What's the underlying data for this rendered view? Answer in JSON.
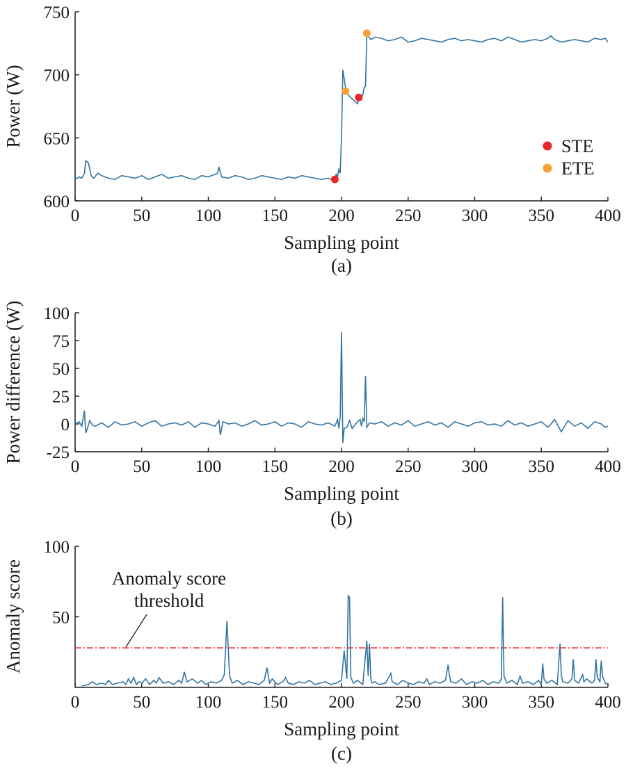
{
  "colors": {
    "series": "#3274a1",
    "ste": "#e8262a",
    "ete": "#f5a23a",
    "threshold": "#e8262a",
    "axis": "#1a1a1a"
  },
  "chart_data": [
    {
      "type": "line",
      "panel_label": "(a)",
      "xlabel": "Sampling point",
      "ylabel": "Power (W)",
      "xlim": [
        0,
        400
      ],
      "ylim": [
        600,
        750
      ],
      "x_ticks": [
        "0",
        "50",
        "100",
        "150",
        "200",
        "250",
        "300",
        "350",
        "400"
      ],
      "y_ticks": [
        "600",
        "650",
        "700",
        "750"
      ],
      "grid": false,
      "legend_position": "right",
      "legend": [
        {
          "label": "STE",
          "color": "#e8262a"
        },
        {
          "label": "ETE",
          "color": "#f5a23a"
        }
      ],
      "series": [
        {
          "name": "Power",
          "color": "#3274a1",
          "x": [
            0,
            3,
            5,
            7,
            8,
            10,
            12,
            14,
            17,
            20,
            25,
            30,
            35,
            40,
            45,
            50,
            55,
            60,
            65,
            70,
            75,
            80,
            85,
            90,
            95,
            100,
            105,
            107,
            108,
            110,
            115,
            120,
            125,
            130,
            135,
            140,
            145,
            150,
            155,
            160,
            165,
            170,
            175,
            180,
            185,
            190,
            193,
            195,
            196,
            197,
            198,
            199,
            200,
            201,
            203,
            205,
            207,
            209,
            211,
            212,
            213,
            214,
            215,
            216,
            217,
            218,
            219,
            220,
            222,
            225,
            230,
            235,
            240,
            245,
            250,
            255,
            260,
            265,
            270,
            275,
            280,
            285,
            290,
            295,
            300,
            305,
            310,
            315,
            320,
            325,
            330,
            335,
            340,
            345,
            350,
            355,
            357,
            360,
            365,
            370,
            375,
            380,
            385,
            390,
            395,
            398,
            400
          ],
          "y": [
            617,
            619,
            618,
            622,
            632,
            630,
            620,
            618,
            622,
            620,
            618,
            617,
            620,
            619,
            618,
            620,
            617,
            619,
            621,
            618,
            619,
            620,
            618,
            617,
            620,
            619,
            621,
            622,
            627,
            619,
            618,
            620,
            619,
            617,
            618,
            620,
            619,
            618,
            617,
            619,
            618,
            620,
            619,
            618,
            617,
            618,
            617,
            617,
            621,
            619,
            625,
            622,
            650,
            704,
            690,
            684,
            682,
            680,
            678,
            677,
            681,
            682,
            683,
            684,
            690,
            691,
            732,
            731,
            728,
            730,
            729,
            727,
            728,
            730,
            726,
            727,
            729,
            728,
            727,
            726,
            728,
            729,
            727,
            728,
            727,
            726,
            728,
            729,
            727,
            730,
            728,
            726,
            727,
            728,
            727,
            729,
            731,
            728,
            726,
            727,
            728,
            727,
            726,
            729,
            728,
            729,
            726
          ]
        },
        {
          "name": "STE",
          "type": "scatter",
          "color": "#e8262a",
          "x": [
            195,
            213
          ],
          "y": [
            617,
            682
          ]
        },
        {
          "name": "ETE",
          "type": "scatter",
          "color": "#f5a23a",
          "x": [
            203,
            219
          ],
          "y": [
            687,
            733
          ]
        }
      ]
    },
    {
      "type": "line",
      "panel_label": "(b)",
      "xlabel": "Sampling point",
      "ylabel": "Power difference (W)",
      "xlim": [
        0,
        400
      ],
      "ylim": [
        -25,
        100
      ],
      "x_ticks": [
        "0",
        "50",
        "100",
        "150",
        "200",
        "250",
        "300",
        "350",
        "400"
      ],
      "y_ticks": [
        "-25",
        "0",
        "25",
        "50",
        "75",
        "100"
      ],
      "grid": false,
      "series": [
        {
          "name": "Power difference",
          "color": "#3274a1",
          "x": [
            0,
            3,
            5,
            7,
            8,
            9,
            11,
            13,
            15,
            20,
            25,
            30,
            35,
            40,
            45,
            50,
            55,
            60,
            65,
            70,
            75,
            80,
            85,
            90,
            95,
            100,
            105,
            108,
            109,
            111,
            115,
            120,
            125,
            130,
            135,
            140,
            145,
            150,
            155,
            160,
            165,
            170,
            175,
            180,
            185,
            190,
            195,
            197,
            198,
            199,
            200,
            201,
            202,
            204,
            206,
            208,
            210,
            212,
            214,
            215,
            216,
            217,
            218,
            219,
            221,
            225,
            230,
            235,
            240,
            245,
            250,
            255,
            260,
            265,
            270,
            275,
            280,
            285,
            290,
            295,
            300,
            305,
            310,
            315,
            320,
            325,
            330,
            335,
            340,
            345,
            350,
            355,
            358,
            360,
            365,
            370,
            375,
            380,
            385,
            390,
            395,
            398,
            400
          ],
          "y": [
            0,
            2,
            -2,
            12,
            -8,
            -5,
            3,
            -1,
            -2,
            1,
            -3,
            2,
            -1,
            0,
            2,
            -2,
            1,
            3,
            -2,
            0,
            1,
            -1,
            2,
            -3,
            1,
            0,
            -2,
            3,
            -10,
            2,
            0,
            1,
            -2,
            0,
            3,
            -1,
            0,
            2,
            -2,
            1,
            0,
            -3,
            2,
            0,
            -1,
            1,
            -2,
            4,
            -4,
            6,
            83,
            -17,
            -4,
            -3,
            3,
            -4,
            -1,
            2,
            4,
            -2,
            5,
            2,
            43,
            -3,
            1,
            0,
            2,
            -2,
            1,
            -1,
            3,
            -2,
            0,
            2,
            -1,
            1,
            -3,
            2,
            0,
            -2,
            1,
            2,
            -1,
            0,
            -2,
            3,
            -1,
            1,
            -2,
            0,
            2,
            -3,
            1,
            4,
            -7,
            3,
            -2,
            1,
            -4,
            2,
            0,
            -3,
            -2
          ]
        }
      ]
    },
    {
      "type": "line",
      "panel_label": "(c)",
      "xlabel": "Sampling point",
      "ylabel": "Anomaly score",
      "xlim": [
        0,
        400
      ],
      "ylim": [
        0,
        100
      ],
      "x_ticks": [
        "0",
        "50",
        "100",
        "150",
        "200",
        "250",
        "300",
        "350",
        "400"
      ],
      "y_ticks": [
        "50",
        "100"
      ],
      "grid": false,
      "annotation_lines": [
        "Anomaly score",
        "threshold"
      ],
      "threshold": 28,
      "series": [
        {
          "name": "Anomaly score",
          "color": "#3274a1",
          "x": [
            5,
            10,
            13,
            16,
            20,
            23,
            25,
            28,
            32,
            36,
            38,
            40,
            42,
            44,
            46,
            48,
            50,
            53,
            56,
            59,
            61,
            63,
            66,
            70,
            74,
            78,
            80,
            82,
            84,
            88,
            92,
            95,
            98,
            102,
            106,
            110,
            112,
            114,
            116,
            118,
            122,
            126,
            130,
            134,
            138,
            142,
            144,
            146,
            148,
            152,
            156,
            158,
            160,
            164,
            168,
            172,
            176,
            180,
            184,
            188,
            192,
            196,
            200,
            202,
            204,
            205,
            206,
            207,
            209,
            212,
            216,
            219,
            220,
            221,
            222,
            223,
            225,
            228,
            233,
            236,
            237,
            238,
            242,
            246,
            250,
            254,
            258,
            262,
            264,
            266,
            270,
            274,
            278,
            280,
            281,
            282,
            286,
            290,
            294,
            298,
            302,
            306,
            310,
            314,
            318,
            320,
            321,
            322,
            324,
            328,
            332,
            334,
            336,
            340,
            344,
            348,
            350,
            351,
            352,
            354,
            358,
            362,
            364,
            365,
            366,
            370,
            373,
            374,
            375,
            378,
            381,
            382,
            384,
            388,
            390,
            391,
            392,
            394,
            395,
            396,
            398,
            400
          ],
          "y": [
            1,
            2,
            4,
            2,
            3,
            2,
            5,
            2,
            3,
            4,
            2,
            6,
            3,
            7,
            2,
            4,
            3,
            6,
            2,
            5,
            3,
            7,
            3,
            4,
            2,
            5,
            3,
            11,
            4,
            6,
            3,
            5,
            2,
            4,
            3,
            5,
            9,
            47,
            8,
            3,
            5,
            2,
            4,
            3,
            2,
            5,
            14,
            3,
            6,
            2,
            4,
            7,
            3,
            2,
            4,
            3,
            5,
            2,
            3,
            4,
            2,
            3,
            5,
            26,
            6,
            65,
            64,
            7,
            3,
            5,
            2,
            33,
            8,
            31,
            6,
            3,
            4,
            2,
            3,
            8,
            10,
            4,
            2,
            5,
            3,
            2,
            4,
            3,
            6,
            2,
            4,
            3,
            5,
            16,
            9,
            4,
            3,
            6,
            2,
            4,
            3,
            5,
            2,
            4,
            3,
            6,
            64,
            8,
            3,
            5,
            2,
            8,
            3,
            4,
            2,
            5,
            2,
            17,
            6,
            3,
            5,
            2,
            31,
            9,
            4,
            3,
            6,
            20,
            5,
            3,
            9,
            4,
            6,
            3,
            5,
            20,
            7,
            4,
            19,
            8,
            3,
            2
          ]
        }
      ]
    }
  ]
}
